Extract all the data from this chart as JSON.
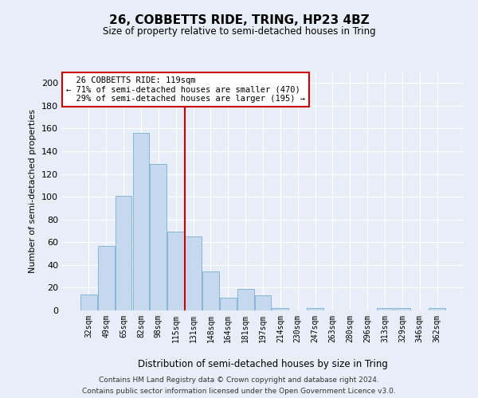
{
  "title": "26, COBBETTS RIDE, TRING, HP23 4BZ",
  "subtitle": "Size of property relative to semi-detached houses in Tring",
  "xlabel": "Distribution of semi-detached houses by size in Tring",
  "ylabel": "Number of semi-detached properties",
  "bar_color": "#c5d8ee",
  "bar_edge_color": "#7aafd4",
  "background_color": "#e8eef8",
  "grid_color": "#ffffff",
  "categories": [
    "32sqm",
    "49sqm",
    "65sqm",
    "82sqm",
    "98sqm",
    "115sqm",
    "131sqm",
    "148sqm",
    "164sqm",
    "181sqm",
    "197sqm",
    "214sqm",
    "230sqm",
    "247sqm",
    "263sqm",
    "280sqm",
    "296sqm",
    "313sqm",
    "329sqm",
    "346sqm",
    "362sqm"
  ],
  "values": [
    14,
    57,
    101,
    156,
    129,
    69,
    65,
    34,
    11,
    19,
    13,
    2,
    0,
    2,
    0,
    0,
    0,
    2,
    2,
    0,
    2
  ],
  "ylim": [
    0,
    210
  ],
  "yticks": [
    0,
    20,
    40,
    60,
    80,
    100,
    120,
    140,
    160,
    180,
    200
  ],
  "vline_position": 5.5,
  "property_label": "26 COBBETTS RIDE: 119sqm",
  "pct_smaller": 71,
  "pct_larger": 29,
  "n_smaller": 470,
  "n_larger": 195,
  "annotation_box_color": "#ffffff",
  "annotation_box_edge": "#cc0000",
  "footer1": "Contains HM Land Registry data © Crown copyright and database right 2024.",
  "footer2": "Contains public sector information licensed under the Open Government Licence v3.0."
}
